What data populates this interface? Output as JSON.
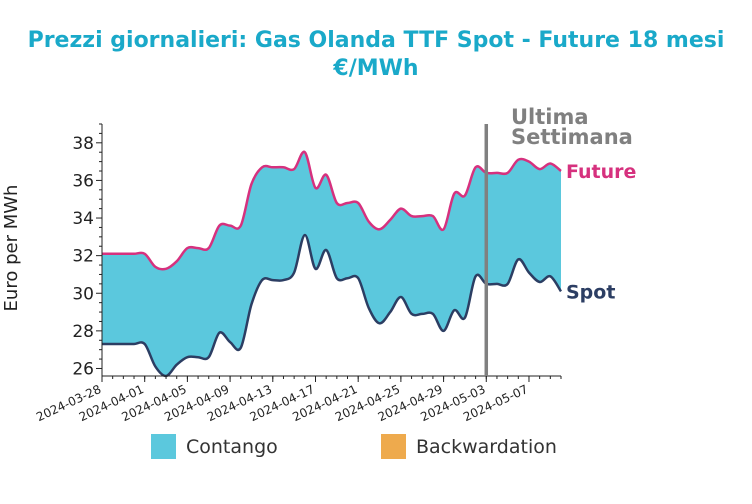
{
  "chart_data": {
    "type": "area",
    "title_line1": "Prezzi giornalieri: Gas Olanda TTF Spot - Future 18 mesi",
    "title_line2": "€/MWh",
    "ylabel": "Euro per MWh",
    "xlabel": "",
    "ylim": [
      25.6,
      39.0
    ],
    "yticks": [
      "26",
      "28",
      "30",
      "32",
      "34",
      "36",
      "38"
    ],
    "xticks": [
      "2024-03-28",
      "2024-04-01",
      "2024-04-05",
      "2024-04-09",
      "2024-04-13",
      "2024-04-17",
      "2024-04-21",
      "2024-04-25",
      "2024-04-29",
      "2024-05-03",
      "2024-05-07"
    ],
    "x": [
      "2024-03-28",
      "2024-03-29",
      "2024-03-30",
      "2024-03-31",
      "2024-04-01",
      "2024-04-02",
      "2024-04-03",
      "2024-04-04",
      "2024-04-05",
      "2024-04-06",
      "2024-04-07",
      "2024-04-08",
      "2024-04-09",
      "2024-04-10",
      "2024-04-11",
      "2024-04-12",
      "2024-04-13",
      "2024-04-14",
      "2024-04-15",
      "2024-04-16",
      "2024-04-17",
      "2024-04-18",
      "2024-04-19",
      "2024-04-20",
      "2024-04-21",
      "2024-04-22",
      "2024-04-23",
      "2024-04-24",
      "2024-04-25",
      "2024-04-26",
      "2024-04-27",
      "2024-04-28",
      "2024-04-29",
      "2024-04-30",
      "2024-05-01",
      "2024-05-02",
      "2024-05-03",
      "2024-05-04",
      "2024-05-05",
      "2024-05-06",
      "2024-05-07",
      "2024-05-08",
      "2024-05-09",
      "2024-05-10"
    ],
    "series": [
      {
        "name": "Future",
        "color": "#d6317e",
        "values": [
          32.1,
          32.1,
          32.1,
          32.1,
          32.1,
          31.4,
          31.3,
          31.7,
          32.4,
          32.4,
          32.4,
          33.6,
          33.6,
          33.6,
          35.8,
          36.7,
          36.7,
          36.7,
          36.6,
          37.5,
          35.6,
          36.3,
          34.8,
          34.8,
          34.8,
          33.8,
          33.4,
          33.9,
          34.5,
          34.1,
          34.1,
          34.1,
          33.4,
          35.3,
          35.2,
          36.7,
          36.4,
          36.4,
          36.4,
          37.1,
          37.0,
          36.6,
          36.9,
          36.5
        ]
      },
      {
        "name": "Spot",
        "color": "#2c3e63",
        "values": [
          27.3,
          27.3,
          27.3,
          27.3,
          27.3,
          26.1,
          25.6,
          26.2,
          26.6,
          26.6,
          26.6,
          27.9,
          27.4,
          27.1,
          29.4,
          30.7,
          30.7,
          30.7,
          31.1,
          33.1,
          31.3,
          32.3,
          30.8,
          30.8,
          30.8,
          29.2,
          28.4,
          29.0,
          29.8,
          28.9,
          28.9,
          28.9,
          28.0,
          29.1,
          28.7,
          30.9,
          30.5,
          30.5,
          30.5,
          31.8,
          31.1,
          30.6,
          30.9,
          30.1
        ]
      }
    ],
    "annotation": {
      "text_line1": "Ultima",
      "text_line2": "Settimana",
      "x": "2024-05-03",
      "color": "#808080"
    },
    "legend": {
      "position": "bottom",
      "items": [
        {
          "label": "Contango",
          "color": "#5bc8dd"
        },
        {
          "label": "Backwardation",
          "color": "#eeaa4d"
        }
      ]
    },
    "colors": {
      "title": "#1aa9c9",
      "contango": "#5bc8dd",
      "backwardation": "#eeaa4d"
    },
    "grid": false
  }
}
